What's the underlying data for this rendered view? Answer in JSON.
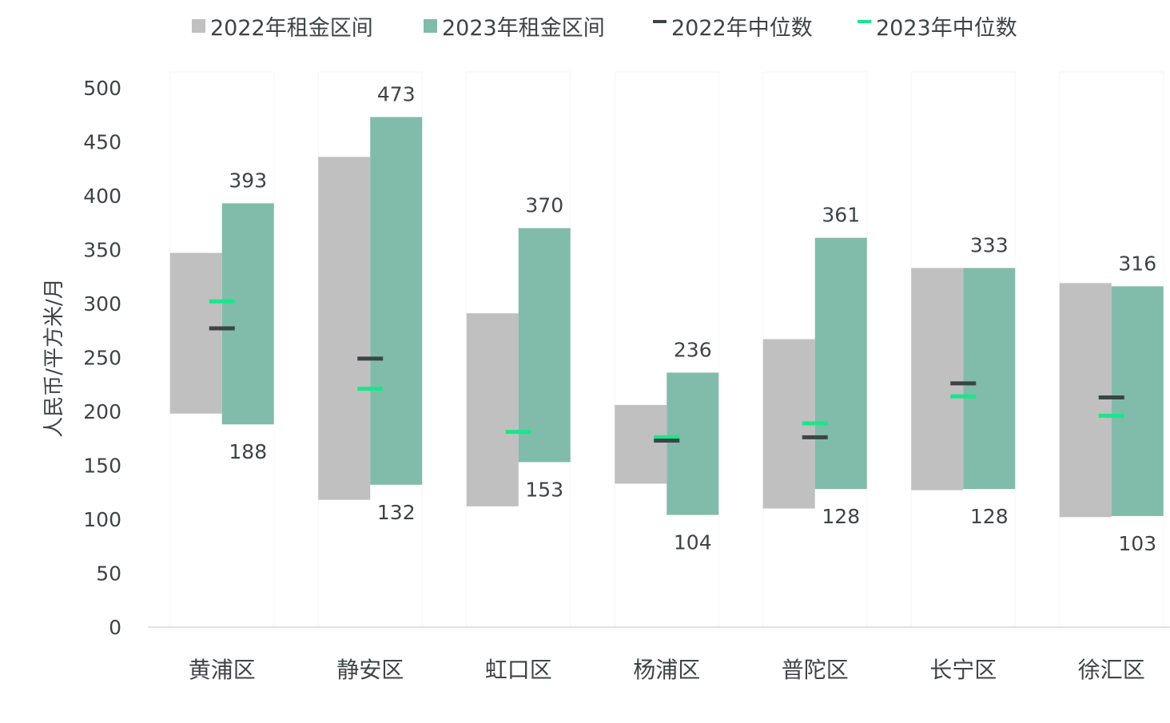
{
  "chart_data": {
    "type": "bar",
    "title": "",
    "xlabel": "",
    "ylabel": "人民币/平方米/月",
    "ylim": [
      0,
      500
    ],
    "yticks": [
      0,
      50,
      100,
      150,
      200,
      250,
      300,
      350,
      400,
      450,
      500
    ],
    "grid": false,
    "legend_position": "top-center",
    "categories": [
      "黄浦区",
      "静安区",
      "虹口区",
      "杨浦区",
      "普陀区",
      "长宁区",
      "徐汇区"
    ],
    "legend": [
      {
        "label": "2022年租金区间",
        "symbol": "square",
        "color": "#c0c0c0"
      },
      {
        "label": "2023年租金区间",
        "symbol": "square",
        "color": "#81bcab"
      },
      {
        "label": "2022年中位数",
        "symbol": "dash",
        "color": "#3c4446"
      },
      {
        "label": "2023年中位数",
        "symbol": "dash",
        "color": "#19e68c"
      }
    ],
    "series": [
      {
        "name": "2022年租金区间",
        "color": "#c0c0c0",
        "low": [
          198,
          118,
          112,
          133,
          110,
          127,
          102
        ],
        "high": [
          347,
          436,
          291,
          206,
          267,
          333,
          319
        ]
      },
      {
        "name": "2023年租金区间",
        "color": "#81bcab",
        "low": [
          188,
          132,
          153,
          104,
          128,
          128,
          103
        ],
        "high": [
          393,
          473,
          370,
          236,
          361,
          333,
          316
        ]
      },
      {
        "name": "2022年中位数",
        "color": "#3c4446",
        "values": [
          277,
          249,
          null,
          173,
          176,
          226,
          213
        ]
      },
      {
        "name": "2023年中位数",
        "color": "#19e68c",
        "values": [
          302,
          221,
          181,
          176,
          189,
          214,
          196
        ]
      }
    ],
    "data_labels": {
      "high": [
        "393",
        "473",
        "370",
        "236",
        "361",
        "333",
        "316"
      ],
      "low": [
        "188",
        "132",
        "153",
        "104",
        "128",
        "128",
        "103"
      ]
    }
  }
}
